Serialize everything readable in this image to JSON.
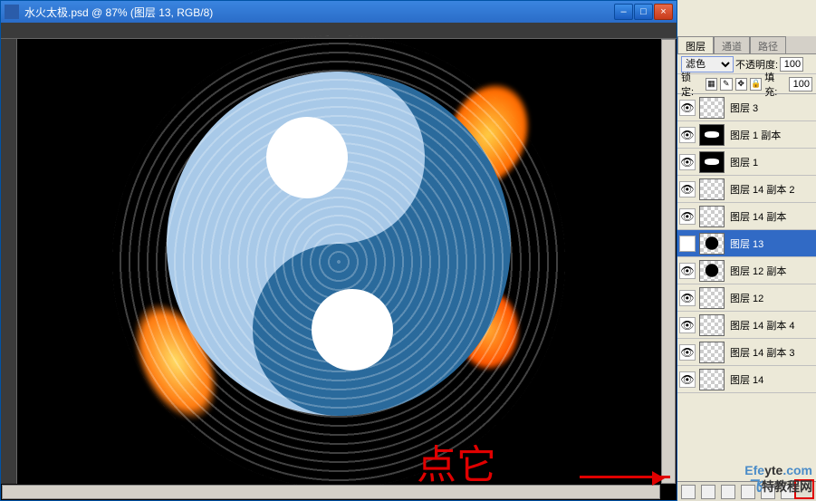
{
  "window": {
    "title": "水火太极.psd @ 87% (图层 13, RGB/8)",
    "min_label": "–",
    "max_label": "□",
    "close_label": "×"
  },
  "tabs": {
    "layers": "图层",
    "channels": "通道",
    "paths": "路径"
  },
  "options": {
    "blend_mode": "滤色",
    "opacity_label": "不透明度:",
    "opacity_value": "100",
    "lock_label": "锁定:",
    "fill_label": "填充:",
    "fill_value": "100"
  },
  "layers": [
    {
      "name": "图层 3",
      "selected": false,
      "thumb": "trans"
    },
    {
      "name": "图层 1 副本",
      "selected": false,
      "thumb": "black"
    },
    {
      "name": "图层 1",
      "selected": false,
      "thumb": "black"
    },
    {
      "name": "图层 14 副本 2",
      "selected": false,
      "thumb": "trans"
    },
    {
      "name": "图层 14 副本",
      "selected": false,
      "thumb": "trans"
    },
    {
      "name": "图层 13",
      "selected": true,
      "thumb": "mask"
    },
    {
      "name": "图层 12 副本",
      "selected": false,
      "thumb": "mask"
    },
    {
      "name": "图层 12",
      "selected": false,
      "thumb": "trans"
    },
    {
      "name": "图层 14 副本 4",
      "selected": false,
      "thumb": "trans"
    },
    {
      "name": "图层 14 副本 3",
      "selected": false,
      "thumb": "trans"
    },
    {
      "name": "图层 14",
      "selected": false,
      "thumb": "trans"
    }
  ],
  "annotation": {
    "text": "点它",
    "arrow": "→"
  },
  "watermark": {
    "line1_a": "Efe",
    "line1_b": "yte",
    "line1_c": ".com",
    "line2_a": "飞",
    "line2_b": "特教程网"
  },
  "colors": {
    "titlebar": "#2a6cc8",
    "selected_layer": "#316ac5",
    "panel_bg": "#ece9d8",
    "canvas_bg": "#000000",
    "taichi_light": "#a8c9e8",
    "taichi_dark": "#2a6a9c",
    "flame_inner": "#ffcc44",
    "flame_outer": "#ff6a00",
    "anno_red": "#e00000"
  }
}
